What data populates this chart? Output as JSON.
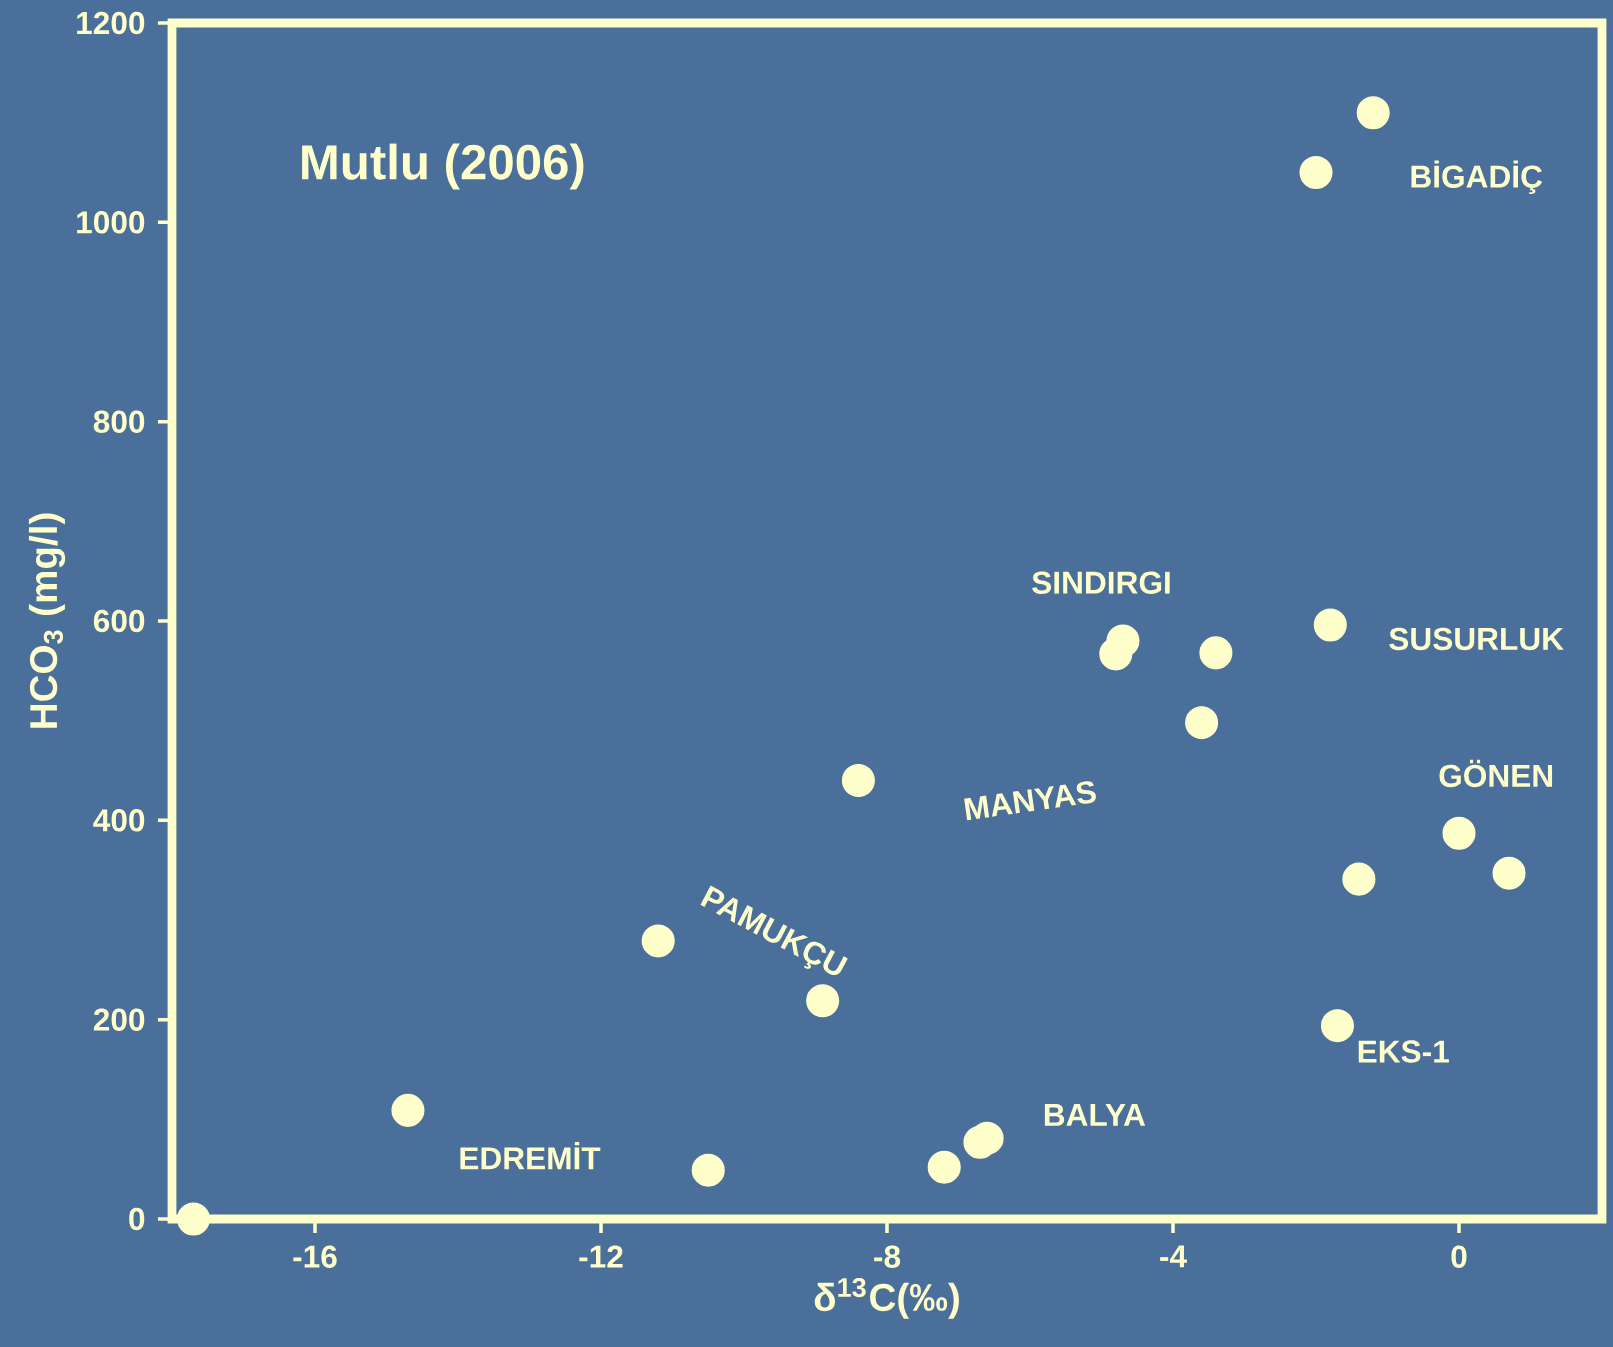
{
  "chart_data": {
    "type": "scatter",
    "xlabel": "δ$^{13}$C(‰)",
    "ylabel": "HCO$_{3}$ (mg/l)",
    "series": [
      {
        "color": "#ffffcc",
        "x": [
          -17.7,
          -1.2,
          -2.0,
          -4.7,
          -4.8,
          -3.4,
          -3.6,
          -8.4,
          -1.8,
          -1.4,
          0,
          0.7,
          -1.7,
          -11.2,
          -8.9,
          -14.7,
          -10.5,
          -7.2,
          -6.7,
          -6.6
        ],
        "values": [
          0,
          1110,
          1050,
          580,
          567,
          568,
          498,
          440,
          596,
          341,
          387,
          347,
          194,
          279,
          219,
          109,
          49,
          52,
          77,
          81
        ]
      }
    ],
    "xlim": [
      -18,
      2
    ],
    "ylim": [
      0,
      1200
    ],
    "xticks": [
      -16,
      -12,
      -8,
      -4,
      0
    ],
    "yticks": [
      0,
      200,
      400,
      600,
      800,
      1000,
      1200
    ],
    "annotations": [
      "Mutlu (2006)",
      "BİGADİÇ",
      "SINDIRGI",
      "SUSURLUK",
      "MANYAS",
      "GÖNEN",
      "PAMUKÇU",
      "EKS-1",
      "BALYA",
      "EDREMİT"
    ]
  }
}
